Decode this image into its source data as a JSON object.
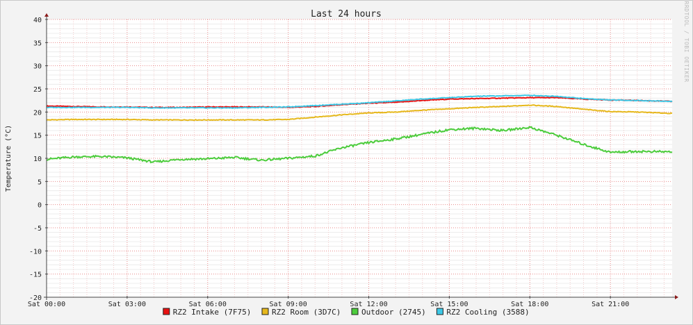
{
  "chart_data": {
    "type": "line",
    "title": "Last 24 hours",
    "ylabel": "Temperature (°C)",
    "xlabel": "",
    "watermark": "RRDTOOL / TOBI OETIKER",
    "ylim": [
      -20,
      40
    ],
    "yticks": [
      40,
      35,
      30,
      25,
      20,
      15,
      10,
      5,
      0,
      -5,
      -10,
      -15,
      -20
    ],
    "xlim": [
      0,
      23.3
    ],
    "xticks": [
      {
        "x": 0,
        "label": "Sat 00:00"
      },
      {
        "x": 3,
        "label": "Sat 03:00"
      },
      {
        "x": 6,
        "label": "Sat 06:00"
      },
      {
        "x": 9,
        "label": "Sat 09:00"
      },
      {
        "x": 12,
        "label": "Sat 12:00"
      },
      {
        "x": 15,
        "label": "Sat 15:00"
      },
      {
        "x": 18,
        "label": "Sat 18:00"
      },
      {
        "x": 21,
        "label": "Sat 21:00"
      }
    ],
    "grid": true,
    "legend_position": "bottom",
    "x": [
      0,
      1,
      2,
      3,
      4,
      5,
      6,
      7,
      8,
      9,
      10,
      11,
      12,
      13,
      14,
      15,
      16,
      17,
      18,
      19,
      20,
      21,
      22,
      23.3
    ],
    "series": [
      {
        "name": "RZ2 Intake (7F75)",
        "color": "#e81010",
        "values": [
          21.3,
          21.2,
          21.1,
          21.1,
          21.0,
          21.0,
          21.1,
          21.1,
          21.1,
          21.0,
          21.2,
          21.6,
          21.9,
          22.1,
          22.5,
          22.8,
          22.9,
          23.0,
          23.1,
          23.1,
          22.8,
          22.6,
          22.5,
          22.3
        ]
      },
      {
        "name": "RZ2 Room (3D7C)",
        "color": "#e6b81c",
        "values": [
          18.3,
          18.4,
          18.4,
          18.4,
          18.3,
          18.3,
          18.3,
          18.3,
          18.3,
          18.4,
          18.9,
          19.4,
          19.8,
          20.0,
          20.4,
          20.7,
          21.0,
          21.2,
          21.5,
          21.2,
          20.6,
          20.1,
          20.0,
          19.7
        ]
      },
      {
        "name": "Outdoor (2745)",
        "color": "#4ccc3c",
        "values": [
          9.8,
          10.3,
          10.4,
          10.1,
          9.2,
          9.8,
          9.9,
          10.2,
          9.6,
          10.0,
          10.5,
          12.3,
          13.4,
          14.2,
          15.2,
          16.2,
          16.5,
          16.0,
          16.7,
          15.0,
          13.0,
          11.3,
          11.5,
          11.4
        ]
      },
      {
        "name": "RZ2 Cooling (3588)",
        "color": "#3cc8e6",
        "values": [
          21.0,
          21.0,
          21.0,
          21.0,
          20.9,
          20.9,
          20.9,
          20.9,
          21.0,
          21.1,
          21.4,
          21.7,
          22.0,
          22.4,
          22.8,
          23.1,
          23.4,
          23.5,
          23.6,
          23.4,
          22.9,
          22.6,
          22.5,
          22.3
        ]
      }
    ]
  }
}
